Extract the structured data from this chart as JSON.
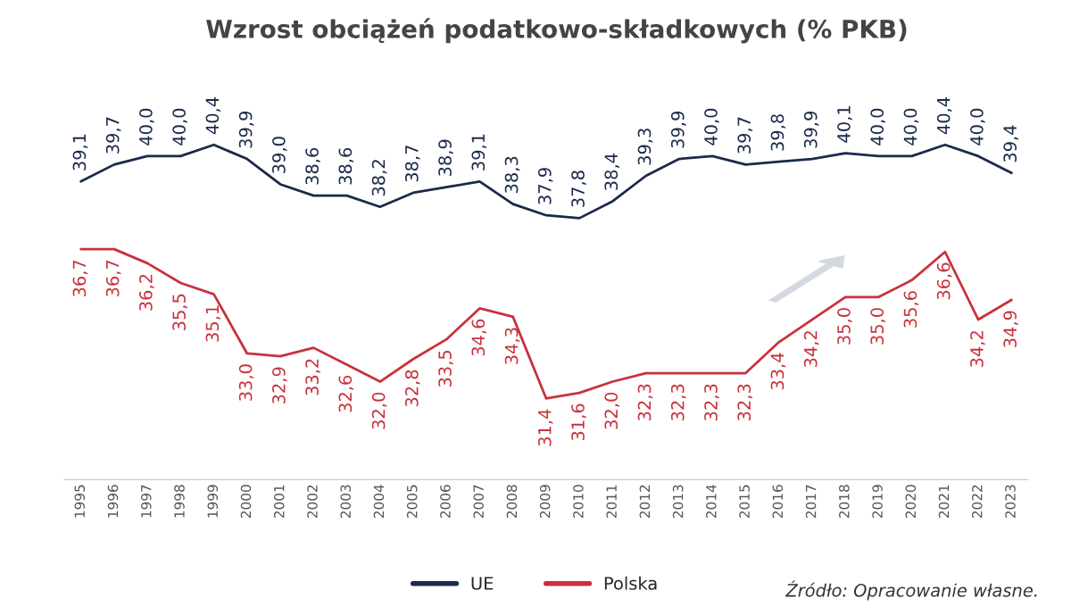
{
  "chart_data": {
    "type": "line",
    "title": "Wzrost obciążeń podatkowo-składkowych (% PKB)",
    "categories": [
      "1995",
      "1996",
      "1997",
      "1998",
      "1999",
      "2000",
      "2001",
      "2002",
      "2003",
      "2004",
      "2005",
      "2006",
      "2007",
      "2008",
      "2009",
      "2010",
      "2011",
      "2012",
      "2013",
      "2014",
      "2015",
      "2016",
      "2017",
      "2018",
      "2019",
      "2020",
      "2021",
      "2022",
      "2023"
    ],
    "series": [
      {
        "name": "UE",
        "color": "#1b2a4a",
        "values": [
          39.1,
          39.7,
          40.0,
          40.0,
          40.4,
          39.9,
          39.0,
          38.6,
          38.6,
          38.2,
          38.7,
          38.9,
          39.1,
          38.3,
          37.9,
          37.8,
          38.4,
          39.3,
          39.9,
          40.0,
          39.7,
          39.8,
          39.9,
          40.1,
          40.0,
          40.0,
          40.4,
          40.0,
          39.4
        ],
        "value_labels": [
          "39,1",
          "39,7",
          "40,0",
          "40,0",
          "40,4",
          "39,9",
          "39,0",
          "38,6",
          "38,6",
          "38,2",
          "38,7",
          "38,9",
          "39,1",
          "38,3",
          "37,9",
          "37,8",
          "38,4",
          "39,3",
          "39,9",
          "40,0",
          "39,7",
          "39,8",
          "39,9",
          "40,1",
          "40,0",
          "40,0",
          "40,4",
          "40,0",
          "39,4"
        ]
      },
      {
        "name": "Polska",
        "color": "#c8323c",
        "values": [
          36.7,
          36.7,
          36.2,
          35.5,
          35.1,
          33.0,
          32.9,
          33.2,
          32.6,
          32.0,
          32.8,
          33.5,
          34.6,
          34.3,
          31.4,
          31.6,
          32.0,
          32.3,
          32.3,
          32.3,
          32.3,
          33.4,
          34.2,
          35.0,
          35.0,
          35.6,
          36.6,
          34.2,
          34.9
        ],
        "value_labels": [
          "36,7",
          "36,7",
          "36,2",
          "35,5",
          "35,1",
          "33,0",
          "32,9",
          "33,2",
          "32,6",
          "32,0",
          "32,8",
          "33,5",
          "34,6",
          "34,3",
          "31,4",
          "31,6",
          "32,0",
          "32,3",
          "32,3",
          "32,3",
          "32,3",
          "33,4",
          "34,2",
          "35,0",
          "35,0",
          "35,6",
          "36,6",
          "34,2",
          "34,9"
        ]
      }
    ],
    "legend": "bottom",
    "grid": false,
    "annotations": [
      "Źródło: Opracowanie własne."
    ]
  }
}
